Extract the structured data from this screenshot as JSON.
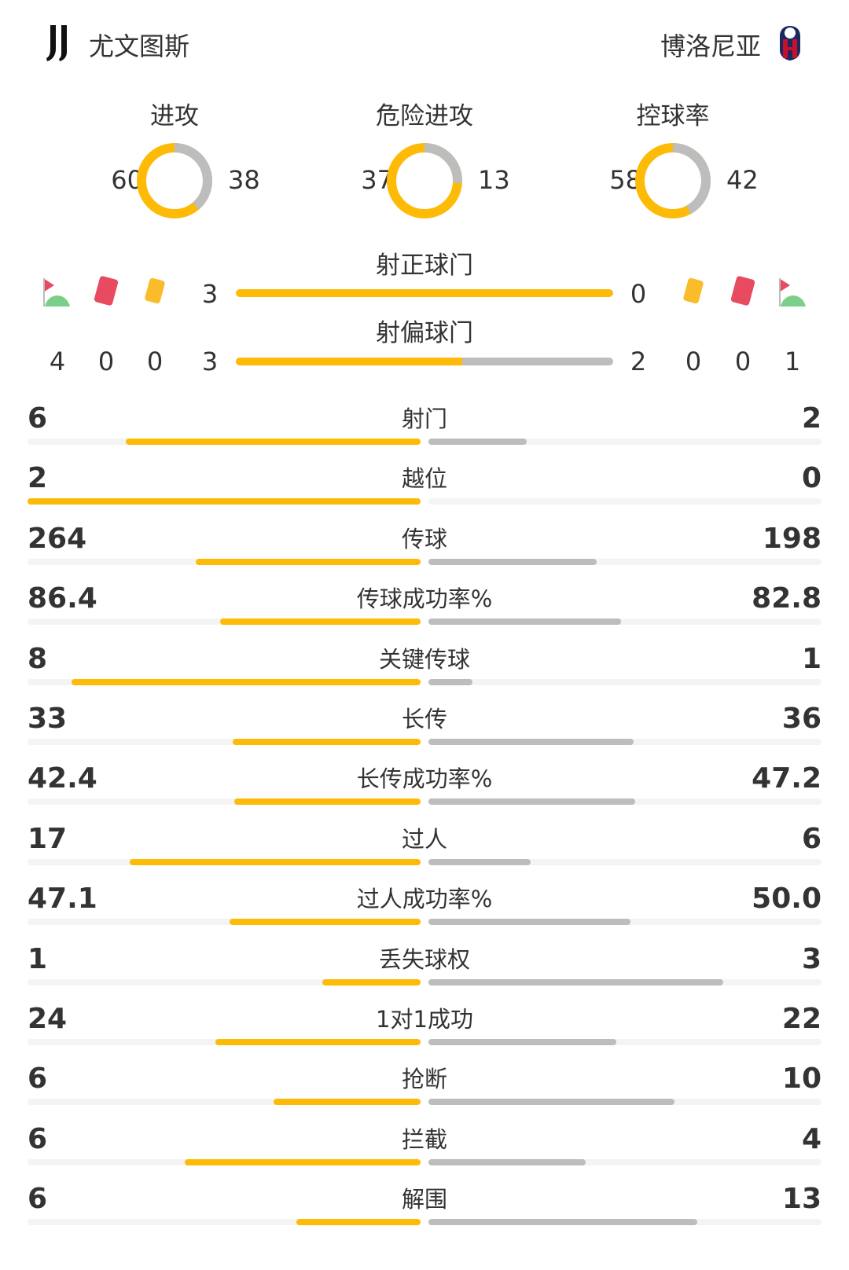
{
  "header": {
    "home": {
      "name": "尤文图斯",
      "logo_icon": "juventus-logo"
    },
    "away": {
      "name": "博洛尼亚",
      "logo_icon": "bologna-logo"
    }
  },
  "colors": {
    "home": "#FDBB08",
    "away": "#BDBDBD",
    "track": "#F4F4F4"
  },
  "donuts": [
    {
      "title": "进攻",
      "home": "60",
      "away": "38"
    },
    {
      "title": "危险进攻",
      "home": "37",
      "away": "13"
    },
    {
      "title": "控球率",
      "home": "58",
      "away": "42"
    }
  ],
  "shots_on": {
    "label": "射正球门",
    "home": "3",
    "away": "0"
  },
  "shots_off": {
    "label": "射偏球门",
    "home": "3",
    "away": "2"
  },
  "events": {
    "icons": [
      "corner-flag-icon",
      "red-card-icon",
      "yellow-card-icon"
    ],
    "home": {
      "corners": "4",
      "red": "0",
      "yellow": "0"
    },
    "away": {
      "yellow": "0",
      "red": "0",
      "corners": "1"
    }
  },
  "stats": [
    {
      "label": "射门",
      "home": "6",
      "away": "2"
    },
    {
      "label": "越位",
      "home": "2",
      "away": "0"
    },
    {
      "label": "传球",
      "home": "264",
      "away": "198"
    },
    {
      "label": "传球成功率%",
      "home": "86.4",
      "away": "82.8"
    },
    {
      "label": "关键传球",
      "home": "8",
      "away": "1"
    },
    {
      "label": "长传",
      "home": "33",
      "away": "36"
    },
    {
      "label": "长传成功率%",
      "home": "42.4",
      "away": "47.2"
    },
    {
      "label": "过人",
      "home": "17",
      "away": "6"
    },
    {
      "label": "过人成功率%",
      "home": "47.1",
      "away": "50.0"
    },
    {
      "label": "丢失球权",
      "home": "1",
      "away": "3"
    },
    {
      "label": "1对1成功",
      "home": "24",
      "away": "22"
    },
    {
      "label": "抢断",
      "home": "6",
      "away": "10"
    },
    {
      "label": "拦截",
      "home": "6",
      "away": "4"
    },
    {
      "label": "解围",
      "home": "6",
      "away": "13"
    }
  ]
}
